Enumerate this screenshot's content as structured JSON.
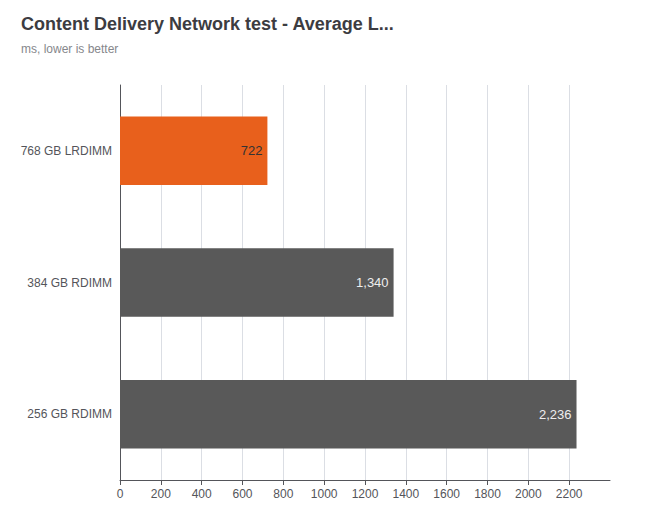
{
  "chart_data": {
    "type": "bar",
    "orientation": "horizontal",
    "title": "Content Delivery Network test - Average L...",
    "subtitle": "ms, lower is better",
    "categories": [
      "256 GB RDIMM",
      "384 GB RDIMM",
      "768 GB LRDIMM"
    ],
    "values": [
      2236,
      1340,
      722
    ],
    "value_labels": [
      "2,236",
      "1,340",
      "722"
    ],
    "data_labels": true,
    "colors": [
      "#595959",
      "#595959",
      "#e8601c"
    ],
    "xlim": [
      0,
      2400
    ],
    "xticks": [
      0,
      200,
      400,
      600,
      800,
      1000,
      1200,
      1400,
      1600,
      1800,
      2000,
      2200
    ],
    "grid": true
  }
}
